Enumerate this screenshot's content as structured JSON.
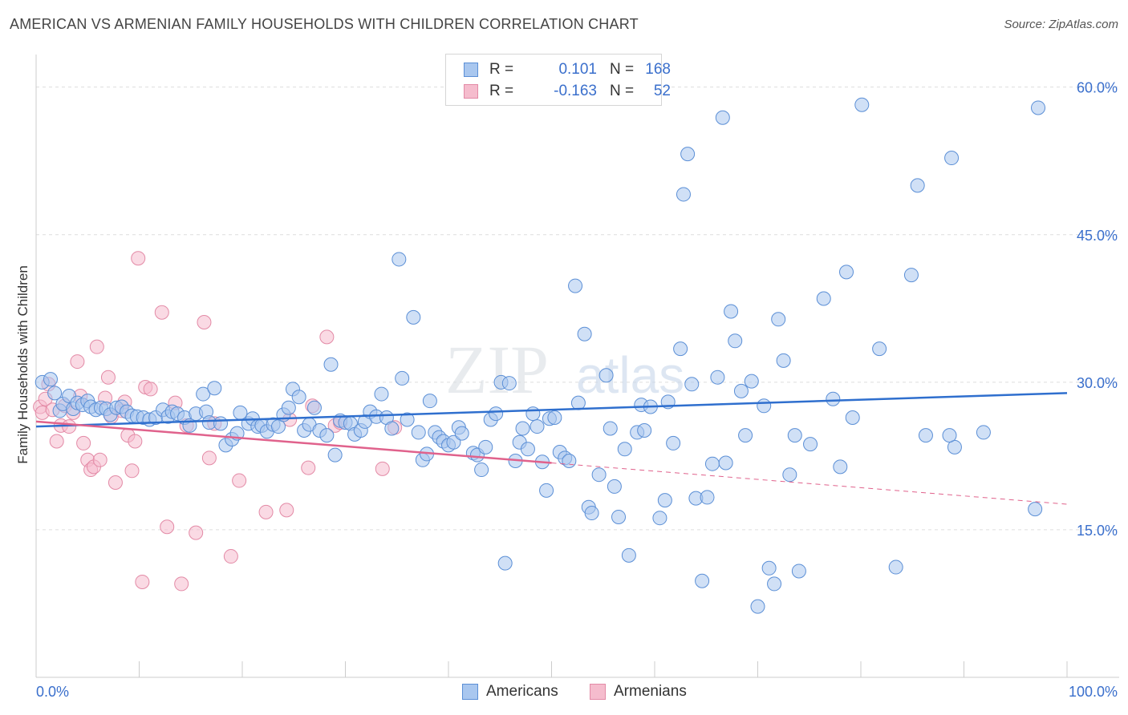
{
  "title": "AMERICAN VS ARMENIAN FAMILY HOUSEHOLDS WITH CHILDREN CORRELATION CHART",
  "source": "Source: ZipAtlas.com",
  "watermark": {
    "zip": "ZIP",
    "atlas": "atlas"
  },
  "stats": {
    "americans": {
      "r_label": "R =",
      "r_value": "0.101",
      "n_label": "N =",
      "n_value": "168"
    },
    "armenians": {
      "r_label": "R =",
      "r_value": "-0.163",
      "n_label": "N =",
      "n_value": "52"
    }
  },
  "colors": {
    "americans_fill": "#a9c7ef",
    "americans_stroke": "#5b8fd6",
    "americans_line": "#2f6fce",
    "armenians_fill": "#f5bccd",
    "armenians_stroke": "#e38aa6",
    "armenians_line": "#e0628c",
    "grid": "#dddddd",
    "tick_label": "#3a6fcc"
  },
  "chart_data": {
    "type": "scatter",
    "title": "AMERICAN VS ARMENIAN FAMILY HOUSEHOLDS WITH CHILDREN CORRELATION CHART",
    "xlabel": "",
    "ylabel": "Family Households with Children",
    "xlim": [
      0,
      100
    ],
    "ylim": [
      0,
      62.5
    ],
    "x_ticks": [
      "0.0%",
      "100.0%"
    ],
    "y_ticks": [
      {
        "value": 15,
        "label": "15.0%"
      },
      {
        "value": 30,
        "label": "30.0%"
      },
      {
        "value": 45,
        "label": "45.0%"
      },
      {
        "value": 60,
        "label": "60.0%"
      }
    ],
    "grid": true,
    "legend_placement": "bottom-center",
    "series": [
      {
        "name": "Americans",
        "trend": {
          "x": [
            0,
            100
          ],
          "y": [
            25.5,
            28.9
          ],
          "dashed_from": null
        },
        "points": [
          [
            0.6,
            30.0
          ],
          [
            1.4,
            30.3
          ],
          [
            1.8,
            28.9
          ],
          [
            2.3,
            27.1
          ],
          [
            2.6,
            27.8
          ],
          [
            3.2,
            28.6
          ],
          [
            3.6,
            27.3
          ],
          [
            4.0,
            27.9
          ],
          [
            4.5,
            27.7
          ],
          [
            5.0,
            28.1
          ],
          [
            5.3,
            27.5
          ],
          [
            5.8,
            27.2
          ],
          [
            6.3,
            27.4
          ],
          [
            6.8,
            27.3
          ],
          [
            7.2,
            26.7
          ],
          [
            7.8,
            27.4
          ],
          [
            8.3,
            27.5
          ],
          [
            8.8,
            27.0
          ],
          [
            9.3,
            26.6
          ],
          [
            9.8,
            26.5
          ],
          [
            10.4,
            26.4
          ],
          [
            11.0,
            26.2
          ],
          [
            11.6,
            26.4
          ],
          [
            12.3,
            27.2
          ],
          [
            12.8,
            26.5
          ],
          [
            13.2,
            27.0
          ],
          [
            13.7,
            26.8
          ],
          [
            14.4,
            26.4
          ],
          [
            14.9,
            25.6
          ],
          [
            15.5,
            26.8
          ],
          [
            16.2,
            28.8
          ],
          [
            16.5,
            27.0
          ],
          [
            16.8,
            25.9
          ],
          [
            17.3,
            29.4
          ],
          [
            17.9,
            25.8
          ],
          [
            18.4,
            23.6
          ],
          [
            19.0,
            24.2
          ],
          [
            19.5,
            24.8
          ],
          [
            19.8,
            26.9
          ],
          [
            20.6,
            25.8
          ],
          [
            21.0,
            26.3
          ],
          [
            21.5,
            25.5
          ],
          [
            21.9,
            25.6
          ],
          [
            22.4,
            25.0
          ],
          [
            23.0,
            25.7
          ],
          [
            23.5,
            25.5
          ],
          [
            24.0,
            26.7
          ],
          [
            24.5,
            27.4
          ],
          [
            24.9,
            29.3
          ],
          [
            25.5,
            28.5
          ],
          [
            26.0,
            25.1
          ],
          [
            26.5,
            25.7
          ],
          [
            27.0,
            27.4
          ],
          [
            27.5,
            25.1
          ],
          [
            28.2,
            24.6
          ],
          [
            28.6,
            31.8
          ],
          [
            29.0,
            22.6
          ],
          [
            29.5,
            26.1
          ],
          [
            30.0,
            25.9
          ],
          [
            30.5,
            25.8
          ],
          [
            30.9,
            24.7
          ],
          [
            31.5,
            25.1
          ],
          [
            31.9,
            26.0
          ],
          [
            32.4,
            27.0
          ],
          [
            33.0,
            26.5
          ],
          [
            33.5,
            28.8
          ],
          [
            34.0,
            26.4
          ],
          [
            34.5,
            25.3
          ],
          [
            35.2,
            42.5
          ],
          [
            35.5,
            30.4
          ],
          [
            36.0,
            26.2
          ],
          [
            36.6,
            36.6
          ],
          [
            37.1,
            24.9
          ],
          [
            37.5,
            22.1
          ],
          [
            37.9,
            22.7
          ],
          [
            38.2,
            28.1
          ],
          [
            38.7,
            24.9
          ],
          [
            39.1,
            24.4
          ],
          [
            39.5,
            24.0
          ],
          [
            40.0,
            23.6
          ],
          [
            40.5,
            23.9
          ],
          [
            41.0,
            25.4
          ],
          [
            41.3,
            24.8
          ],
          [
            42.4,
            22.8
          ],
          [
            42.8,
            22.6
          ],
          [
            43.2,
            21.1
          ],
          [
            43.6,
            23.4
          ],
          [
            44.1,
            26.2
          ],
          [
            44.6,
            26.8
          ],
          [
            45.1,
            30.0
          ],
          [
            45.5,
            11.6
          ],
          [
            45.9,
            29.9
          ],
          [
            46.5,
            22.0
          ],
          [
            46.9,
            23.9
          ],
          [
            47.2,
            25.3
          ],
          [
            47.7,
            23.2
          ],
          [
            48.2,
            26.8
          ],
          [
            48.6,
            25.5
          ],
          [
            49.1,
            21.9
          ],
          [
            49.5,
            19.0
          ],
          [
            49.8,
            26.3
          ],
          [
            50.3,
            26.4
          ],
          [
            50.8,
            22.9
          ],
          [
            51.3,
            22.3
          ],
          [
            51.7,
            22.0
          ],
          [
            52.3,
            39.8
          ],
          [
            52.6,
            27.9
          ],
          [
            53.2,
            34.9
          ],
          [
            53.6,
            17.3
          ],
          [
            53.9,
            16.7
          ],
          [
            54.6,
            20.6
          ],
          [
            55.3,
            30.7
          ],
          [
            55.7,
            25.3
          ],
          [
            56.1,
            19.4
          ],
          [
            56.5,
            16.3
          ],
          [
            57.1,
            23.2
          ],
          [
            57.5,
            12.4
          ],
          [
            58.3,
            24.9
          ],
          [
            58.7,
            27.7
          ],
          [
            59.0,
            25.1
          ],
          [
            59.6,
            27.5
          ],
          [
            60.5,
            16.2
          ],
          [
            61.0,
            18.0
          ],
          [
            61.3,
            28.0
          ],
          [
            61.8,
            23.8
          ],
          [
            62.5,
            33.4
          ],
          [
            62.8,
            49.1
          ],
          [
            63.2,
            53.2
          ],
          [
            63.6,
            29.8
          ],
          [
            64.0,
            18.2
          ],
          [
            64.6,
            9.8
          ],
          [
            65.1,
            18.3
          ],
          [
            65.6,
            21.7
          ],
          [
            66.1,
            30.5
          ],
          [
            66.6,
            56.9
          ],
          [
            66.9,
            21.8
          ],
          [
            67.4,
            37.2
          ],
          [
            67.8,
            34.2
          ],
          [
            68.4,
            29.1
          ],
          [
            68.8,
            24.6
          ],
          [
            69.4,
            30.1
          ],
          [
            70.0,
            7.2
          ],
          [
            70.6,
            27.6
          ],
          [
            71.1,
            11.1
          ],
          [
            71.6,
            9.5
          ],
          [
            72.0,
            36.4
          ],
          [
            72.5,
            32.2
          ],
          [
            73.1,
            20.6
          ],
          [
            73.6,
            24.6
          ],
          [
            74.0,
            10.8
          ],
          [
            75.1,
            23.7
          ],
          [
            76.4,
            38.5
          ],
          [
            77.3,
            28.3
          ],
          [
            78.0,
            21.4
          ],
          [
            78.6,
            41.2
          ],
          [
            79.2,
            26.4
          ],
          [
            80.1,
            58.2
          ],
          [
            81.8,
            33.4
          ],
          [
            83.4,
            11.2
          ],
          [
            84.9,
            40.9
          ],
          [
            85.5,
            50.0
          ],
          [
            86.3,
            24.6
          ],
          [
            89.1,
            23.4
          ],
          [
            88.8,
            52.8
          ],
          [
            96.9,
            17.1
          ],
          [
            97.2,
            57.9
          ],
          [
            91.9,
            24.9
          ],
          [
            88.6,
            24.6
          ]
        ]
      },
      {
        "name": "Armenians",
        "trend": {
          "x": [
            0,
            100
          ],
          "y": [
            26.0,
            17.6
          ],
          "dashed_from": 50
        },
        "points": [
          [
            0.4,
            27.5
          ],
          [
            0.6,
            26.9
          ],
          [
            0.9,
            28.3
          ],
          [
            1.2,
            29.8
          ],
          [
            1.6,
            27.2
          ],
          [
            2.0,
            24.0
          ],
          [
            2.4,
            25.6
          ],
          [
            2.8,
            27.6
          ],
          [
            3.2,
            25.5
          ],
          [
            3.6,
            26.9
          ],
          [
            4.0,
            32.1
          ],
          [
            4.3,
            28.6
          ],
          [
            4.6,
            23.8
          ],
          [
            5.0,
            22.1
          ],
          [
            5.3,
            21.1
          ],
          [
            5.6,
            21.4
          ],
          [
            5.9,
            33.6
          ],
          [
            6.2,
            22.1
          ],
          [
            6.7,
            28.4
          ],
          [
            7.0,
            30.5
          ],
          [
            7.3,
            26.5
          ],
          [
            7.7,
            19.8
          ],
          [
            8.3,
            27.1
          ],
          [
            8.6,
            28.0
          ],
          [
            8.9,
            24.6
          ],
          [
            9.3,
            21.0
          ],
          [
            9.6,
            24.0
          ],
          [
            9.9,
            42.6
          ],
          [
            10.3,
            9.7
          ],
          [
            10.6,
            29.5
          ],
          [
            11.1,
            29.3
          ],
          [
            12.2,
            37.1
          ],
          [
            12.7,
            15.3
          ],
          [
            13.5,
            27.9
          ],
          [
            14.1,
            9.5
          ],
          [
            14.6,
            25.6
          ],
          [
            15.5,
            14.7
          ],
          [
            16.3,
            36.1
          ],
          [
            16.8,
            22.3
          ],
          [
            17.3,
            25.8
          ],
          [
            18.9,
            12.3
          ],
          [
            19.7,
            20.0
          ],
          [
            22.3,
            16.8
          ],
          [
            24.3,
            17.0
          ],
          [
            24.6,
            26.2
          ],
          [
            26.4,
            21.3
          ],
          [
            26.8,
            27.6
          ],
          [
            28.2,
            34.6
          ],
          [
            29.0,
            25.6
          ],
          [
            29.5,
            25.9
          ],
          [
            33.6,
            21.2
          ],
          [
            34.8,
            25.4
          ]
        ]
      }
    ]
  },
  "legend": {
    "americans": "Americans",
    "armenians": "Armenians"
  }
}
